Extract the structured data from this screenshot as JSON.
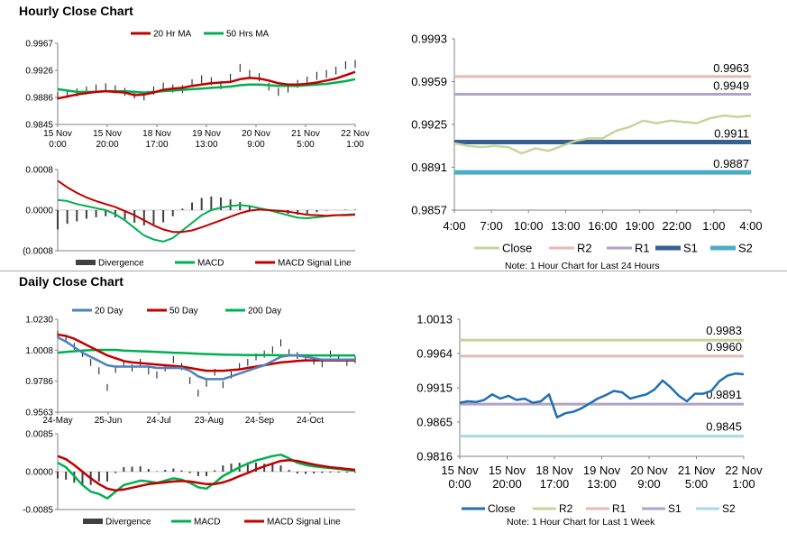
{
  "sections": {
    "hourly_title": "Hourly Close Chart",
    "daily_title": "Daily Close Chart"
  },
  "colors": {
    "ma_red": "#c00000",
    "ma_green": "#00b050",
    "ma_blue": "#4f81bd",
    "close_light": "#c3d69b",
    "close_dark": "#1f6fb2",
    "r2": "#e6b9b8",
    "r1": "#b3a2c7",
    "s1": "#376092",
    "s2": "#4bacc6",
    "axis": "#808080",
    "divergence": "#404040"
  },
  "chart_data": [
    {
      "id": "hourly_price",
      "type": "line",
      "title": "Hourly Close Chart",
      "legend": [
        "20 Hr MA",
        "50 Hrs MA"
      ],
      "y_ticks": [
        "0.9967",
        "0.9926",
        "0.9886",
        "0.9845"
      ],
      "ylim": [
        0.9845,
        0.9967
      ],
      "x_ticks": [
        [
          "15 Nov",
          "0:00"
        ],
        [
          "15 Nov",
          "20:00"
        ],
        [
          "18 Nov",
          "17:00"
        ],
        [
          "19 Nov",
          "13:00"
        ],
        [
          "20 Nov",
          "9:00"
        ],
        [
          "21 Nov",
          "5:00"
        ],
        [
          "22 Nov",
          "1:00"
        ]
      ],
      "series": [
        {
          "name": "Close",
          "values": [
            0.9888,
            0.9891,
            0.9893,
            0.9896,
            0.9899,
            0.9901,
            0.9898,
            0.9894,
            0.989,
            0.9887,
            0.9896,
            0.9902,
            0.9899,
            0.9898,
            0.9907,
            0.9913,
            0.991,
            0.9904,
            0.9915,
            0.993,
            0.9921,
            0.9916,
            0.9902,
            0.9894,
            0.9899,
            0.9906,
            0.9911,
            0.9918,
            0.9921,
            0.9926,
            0.9934,
            0.9936
          ]
        },
        {
          "name": "20 Hr MA",
          "values": [
            0.9884,
            0.9887,
            0.989,
            0.9892,
            0.9894,
            0.9895,
            0.9894,
            0.9893,
            0.9889,
            0.989,
            0.9893,
            0.9897,
            0.9899,
            0.99,
            0.9903,
            0.9905,
            0.9907,
            0.9908,
            0.9909,
            0.9913,
            0.9915,
            0.9914,
            0.9911,
            0.9907,
            0.9905,
            0.9905,
            0.9906,
            0.9908,
            0.9911,
            0.9914,
            0.9919,
            0.9924
          ]
        },
        {
          "name": "50 Hrs MA",
          "values": [
            0.9898,
            0.9896,
            0.9894,
            0.9894,
            0.9894,
            0.9895,
            0.9895,
            0.9895,
            0.9894,
            0.9893,
            0.9894,
            0.9895,
            0.9896,
            0.9897,
            0.9898,
            0.9899,
            0.99,
            0.9901,
            0.9902,
            0.9904,
            0.9905,
            0.9905,
            0.9904,
            0.9903,
            0.9903,
            0.9903,
            0.9904,
            0.9905,
            0.9906,
            0.9908,
            0.991,
            0.9913
          ]
        }
      ]
    },
    {
      "id": "hourly_macd",
      "type": "line",
      "legend": [
        "Divergence",
        "MACD",
        "MACD Signal Line"
      ],
      "y_ticks": [
        "0.0008",
        "0.0000",
        "(0.0008"
      ],
      "ylim": [
        -0.0008,
        0.0008
      ],
      "series": [
        {
          "name": "MACD",
          "values": [
            0.0002,
            0.00018,
            0.00012,
            8e-05,
            4e-05,
            0.0,
            -8e-05,
            -0.0002,
            -0.00035,
            -0.0005,
            -0.00058,
            -0.00062,
            -0.00055,
            -0.0004,
            -0.00025,
            -0.0001,
            0.0,
            5e-05,
            8e-05,
            0.0001,
            8e-05,
            4e-05,
            0.0,
            -5e-05,
            -0.0001,
            -0.00015,
            -0.00016,
            -0.00014,
            -0.00012,
            -0.0001,
            -9e-05,
            -8e-05
          ]
        },
        {
          "name": "MACD Signal Line",
          "values": [
            0.00058,
            0.00045,
            0.00034,
            0.00025,
            0.00018,
            0.00012,
            6e-05,
            -2e-05,
            -0.0001,
            -0.0002,
            -0.0003,
            -0.00038,
            -0.00043,
            -0.00043,
            -0.0004,
            -0.00034,
            -0.00027,
            -0.0002,
            -0.00013,
            -6e-05,
            -1e-05,
            1e-05,
            0.0,
            -1e-05,
            -3e-05,
            -6e-05,
            -9e-05,
            -0.0001,
            -0.00011,
            -0.0001,
            -0.0001,
            -9e-05
          ]
        },
        {
          "name": "Divergence",
          "values": [
            -0.00038,
            -0.00027,
            -0.00022,
            -0.00017,
            -0.00014,
            -0.00012,
            -0.00014,
            -0.00018,
            -0.00025,
            -0.0003,
            -0.00028,
            -0.00024,
            -0.00012,
            3e-05,
            0.00015,
            0.00024,
            0.00027,
            0.00025,
            0.00021,
            0.00016,
            9e-05,
            3e-05,
            0.0,
            -4e-05,
            -7e-05,
            -9e-05,
            -7e-05,
            -4e-05,
            -1e-05,
            0.0,
            1e-05,
            1e-05
          ]
        }
      ]
    },
    {
      "id": "hourly_levels",
      "type": "line",
      "y_ticks": [
        "0.9993",
        "0.9959",
        "0.9925",
        "0.9891",
        "0.9857"
      ],
      "ylim": [
        0.9857,
        0.9993
      ],
      "x_ticks": [
        "4:00",
        "7:00",
        "10:00",
        "13:00",
        "16:00",
        "19:00",
        "22:00",
        "1:00",
        "4:00"
      ],
      "series": [
        {
          "name": "Close",
          "values": [
            0.991,
            0.9908,
            0.9907,
            0.9908,
            0.9907,
            0.9902,
            0.9906,
            0.9904,
            0.9908,
            0.9912,
            0.9914,
            0.9914,
            0.992,
            0.9923,
            0.9928,
            0.9926,
            0.9928,
            0.9927,
            0.9926,
            0.993,
            0.9932,
            0.9931,
            0.9932
          ]
        }
      ],
      "levels": [
        {
          "name": "R2",
          "value": 0.9963,
          "label": "0.9963"
        },
        {
          "name": "R1",
          "value": 0.9949,
          "label": "0.9949"
        },
        {
          "name": "S1",
          "value": 0.9911,
          "label": "0.9911"
        },
        {
          "name": "S2",
          "value": 0.9887,
          "label": "0.9887"
        }
      ],
      "legend": [
        "Close",
        "R2",
        "R1",
        "S1",
        "S2"
      ],
      "note": "Note: 1 Hour Chart for Last 24 Hours"
    },
    {
      "id": "daily_price",
      "type": "line",
      "title": "Daily Close Chart",
      "legend": [
        "20 Day",
        "50 Day",
        "200 Day"
      ],
      "y_ticks": [
        "1.0230",
        "1.0008",
        "0.9786",
        "0.9563"
      ],
      "ylim": [
        0.9563,
        1.023
      ],
      "x_ticks": [
        "24-May",
        "25-Jun",
        "24-Jul",
        "23-Aug",
        "24-Sep",
        "24-Oct"
      ],
      "series": [
        {
          "name": "Close",
          "values": [
            1.012,
            1.0085,
            1.0035,
            0.9985,
            0.992,
            0.986,
            0.974,
            0.987,
            0.991,
            0.988,
            0.992,
            0.986,
            0.983,
            0.988,
            0.994,
            0.989,
            0.979,
            0.97,
            0.977,
            0.985,
            0.976,
            0.983,
            0.989,
            0.992,
            0.996,
            0.998,
            1.001,
            1.006,
            0.999,
            0.997,
            0.995,
            0.993,
            0.991,
            0.998,
            0.995,
            0.992,
            0.994
          ]
        },
        {
          "name": "20 Day",
          "values": [
            1.01,
            1.007,
            1.003,
            0.999,
            0.996,
            0.993,
            0.99,
            0.989,
            0.989,
            0.989,
            0.989,
            0.989,
            0.988,
            0.988,
            0.988,
            0.988,
            0.986,
            0.982,
            0.98,
            0.98,
            0.98,
            0.982,
            0.984,
            0.986,
            0.988,
            0.99,
            0.993,
            0.996,
            0.997,
            0.997,
            0.996,
            0.995,
            0.994,
            0.994,
            0.994,
            0.994,
            0.994
          ]
        },
        {
          "name": "50 Day",
          "values": [
            1.012,
            1.011,
            1.009,
            1.006,
            1.003,
            1.0,
            0.997,
            0.995,
            0.993,
            0.992,
            0.9915,
            0.991,
            0.9905,
            0.99,
            0.9895,
            0.989,
            0.988,
            0.987,
            0.986,
            0.986,
            0.986,
            0.9865,
            0.987,
            0.988,
            0.989,
            0.99,
            0.991,
            0.992,
            0.9925,
            0.993,
            0.9935,
            0.9935,
            0.9935,
            0.9935,
            0.9935,
            0.9935,
            0.9935
          ]
        },
        {
          "name": "200 Day",
          "values": [
            0.999,
            0.9995,
            1.0,
            1.0005,
            1.0008,
            1.001,
            1.001,
            1.001,
            1.0005,
            1.0003,
            1.0,
            0.9998,
            0.9995,
            0.9993,
            0.999,
            0.9988,
            0.9985,
            0.9982,
            0.998,
            0.9978,
            0.9976,
            0.9975,
            0.9974,
            0.9973,
            0.9972,
            0.9972,
            0.9972,
            0.9971,
            0.9971,
            0.9971,
            0.9971,
            0.997,
            0.997,
            0.997,
            0.997,
            0.997,
            0.997
          ]
        }
      ]
    },
    {
      "id": "daily_macd",
      "type": "line",
      "legend": [
        "Divergence",
        "MACD",
        "MACD Signal Line"
      ],
      "y_ticks": [
        "0.0085",
        "0.0000",
        "-0.0085"
      ],
      "ylim": [
        -0.0085,
        0.0085
      ],
      "series": [
        {
          "name": "MACD",
          "values": [
            0.002,
            0.001,
            -0.001,
            -0.003,
            -0.0045,
            -0.005,
            -0.006,
            -0.0045,
            -0.003,
            -0.0025,
            -0.002,
            -0.0022,
            -0.0025,
            -0.002,
            -0.0015,
            -0.0018,
            -0.0025,
            -0.0035,
            -0.0038,
            -0.0025,
            -0.001,
            0.0,
            0.001,
            0.0018,
            0.0025,
            0.003,
            0.0035,
            0.0038,
            0.003,
            0.002,
            0.0015,
            0.0012,
            0.001,
            0.0008,
            0.0006,
            0.0004,
            0.0002
          ]
        },
        {
          "name": "MACD Signal Line",
          "values": [
            0.0035,
            0.0028,
            0.0015,
            0.0,
            -0.0015,
            -0.0028,
            -0.0038,
            -0.0042,
            -0.004,
            -0.0036,
            -0.0032,
            -0.0028,
            -0.0026,
            -0.0024,
            -0.0022,
            -0.0021,
            -0.0022,
            -0.0025,
            -0.0028,
            -0.0028,
            -0.0024,
            -0.0018,
            -0.001,
            -0.0003,
            0.0005,
            0.0012,
            0.0018,
            0.0024,
            0.0026,
            0.0024,
            0.002,
            0.0016,
            0.0013,
            0.001,
            0.0008,
            0.0006,
            0.0004
          ]
        },
        {
          "name": "Divergence",
          "values": [
            -0.0015,
            -0.0018,
            -0.0025,
            -0.003,
            -0.003,
            -0.0022,
            -0.0022,
            -0.0003,
            0.001,
            0.0011,
            0.0012,
            0.0006,
            0.0001,
            0.0004,
            0.0007,
            0.0003,
            -0.0003,
            -0.001,
            -0.001,
            0.0003,
            0.0014,
            0.0018,
            0.002,
            0.0021,
            0.002,
            0.0018,
            0.0017,
            0.0014,
            0.0004,
            -0.0004,
            -0.0005,
            -0.0004,
            -0.0003,
            -0.0002,
            -0.0002,
            -0.0002,
            -0.0002
          ]
        }
      ]
    },
    {
      "id": "daily_levels",
      "type": "line",
      "y_ticks": [
        "1.0013",
        "0.9964",
        "0.9915",
        "0.9865",
        "0.9816"
      ],
      "ylim": [
        0.9816,
        1.0013
      ],
      "x_ticks": [
        [
          "15 Nov",
          "0:00"
        ],
        [
          "15 Nov",
          "20:00"
        ],
        [
          "18 Nov",
          "17:00"
        ],
        [
          "19 Nov",
          "13:00"
        ],
        [
          "20 Nov",
          "9:00"
        ],
        [
          "21 Nov",
          "5:00"
        ],
        [
          "22 Nov",
          "1:00"
        ]
      ],
      "series": [
        {
          "name": "Close",
          "values": [
            0.9893,
            0.9895,
            0.9894,
            0.9897,
            0.9905,
            0.9899,
            0.9903,
            0.9897,
            0.9899,
            0.9893,
            0.9895,
            0.9905,
            0.9872,
            0.9878,
            0.988,
            0.9885,
            0.9892,
            0.9899,
            0.9904,
            0.991,
            0.9908,
            0.9899,
            0.9902,
            0.9905,
            0.9912,
            0.9925,
            0.9915,
            0.9903,
            0.9895,
            0.9906,
            0.9906,
            0.991,
            0.9924,
            0.9932,
            0.9935,
            0.9934
          ]
        }
      ],
      "levels": [
        {
          "name": "R2",
          "value": 0.9983,
          "label": "0.9983"
        },
        {
          "name": "R1",
          "value": 0.996,
          "label": "0.9960"
        },
        {
          "name": "S1",
          "value": 0.9891,
          "label": "0.9891"
        },
        {
          "name": "S2",
          "value": 0.9845,
          "label": "0.9845"
        }
      ],
      "legend": [
        "Close",
        "R2",
        "R1",
        "S1",
        "S2"
      ],
      "note": "Note: 1 Hour Chart for Last 1 Week"
    }
  ]
}
